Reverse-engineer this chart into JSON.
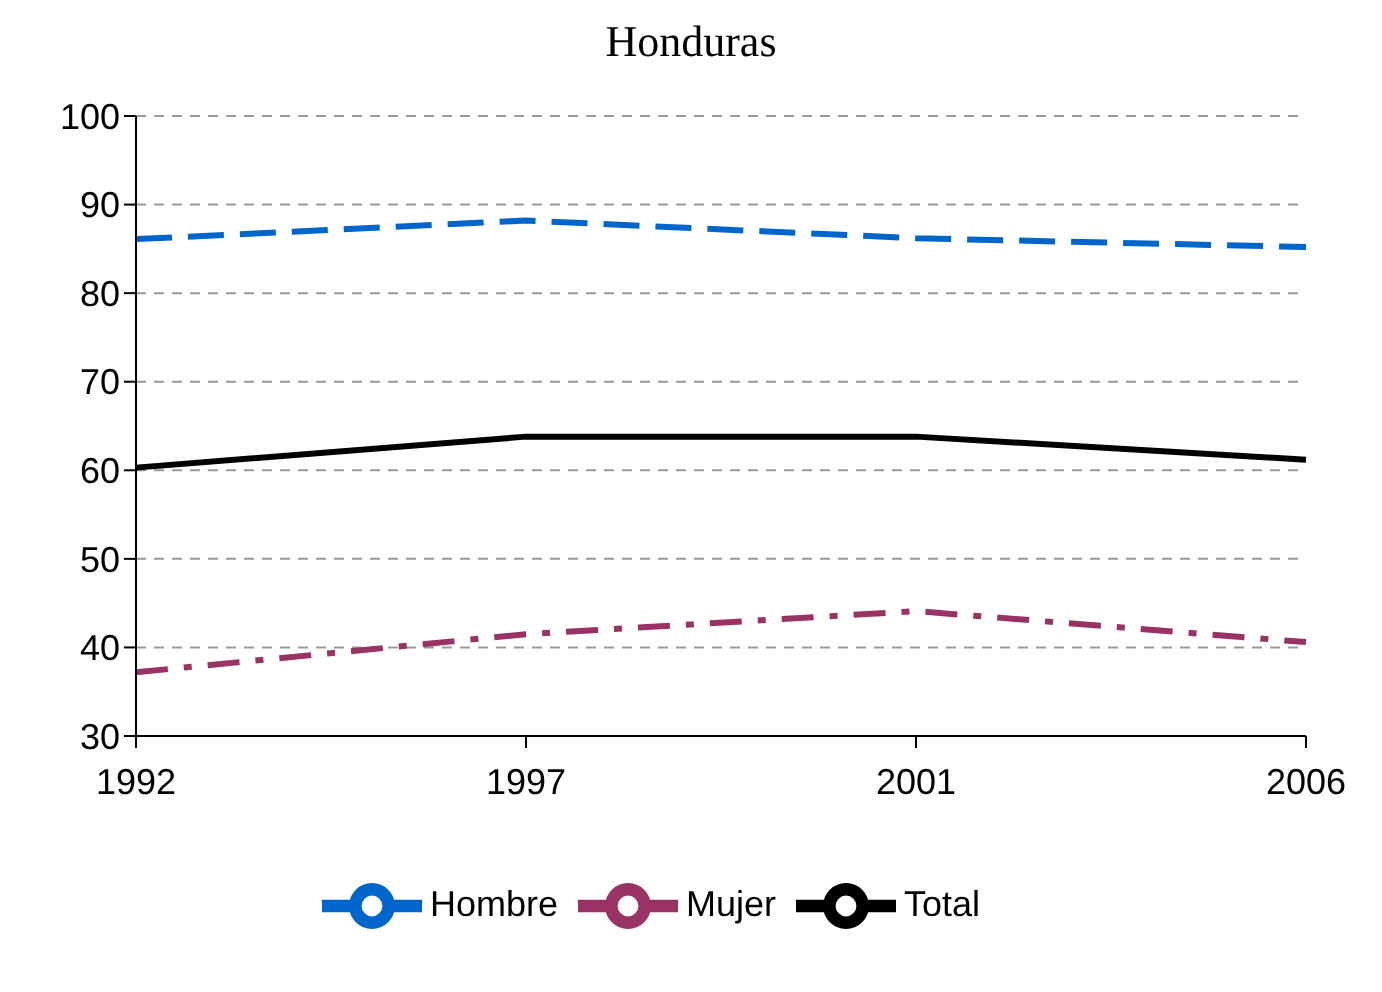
{
  "chart_data": {
    "type": "line",
    "title": "Honduras",
    "categories": [
      "1992",
      "1997",
      "2001",
      "2006"
    ],
    "series": [
      {
        "name": "Total",
        "color": "#000000",
        "line_style": "solid",
        "values": [
          60.3,
          63.8,
          63.8,
          61.2
        ]
      },
      {
        "name": "Mujer",
        "color": "#993366",
        "line_style": "dashdot",
        "values": [
          37.2,
          41.5,
          44.1,
          40.6
        ]
      },
      {
        "name": "Hombre",
        "color": "#0066cc",
        "line_style": "dashed",
        "values": [
          86.1,
          88.2,
          86.2,
          85.2
        ]
      }
    ],
    "ylim": [
      30,
      100
    ],
    "yticks": [
      30,
      40,
      50,
      60,
      70,
      80,
      90,
      100
    ],
    "grid": "y",
    "legend": "bottom",
    "marker": "none"
  }
}
